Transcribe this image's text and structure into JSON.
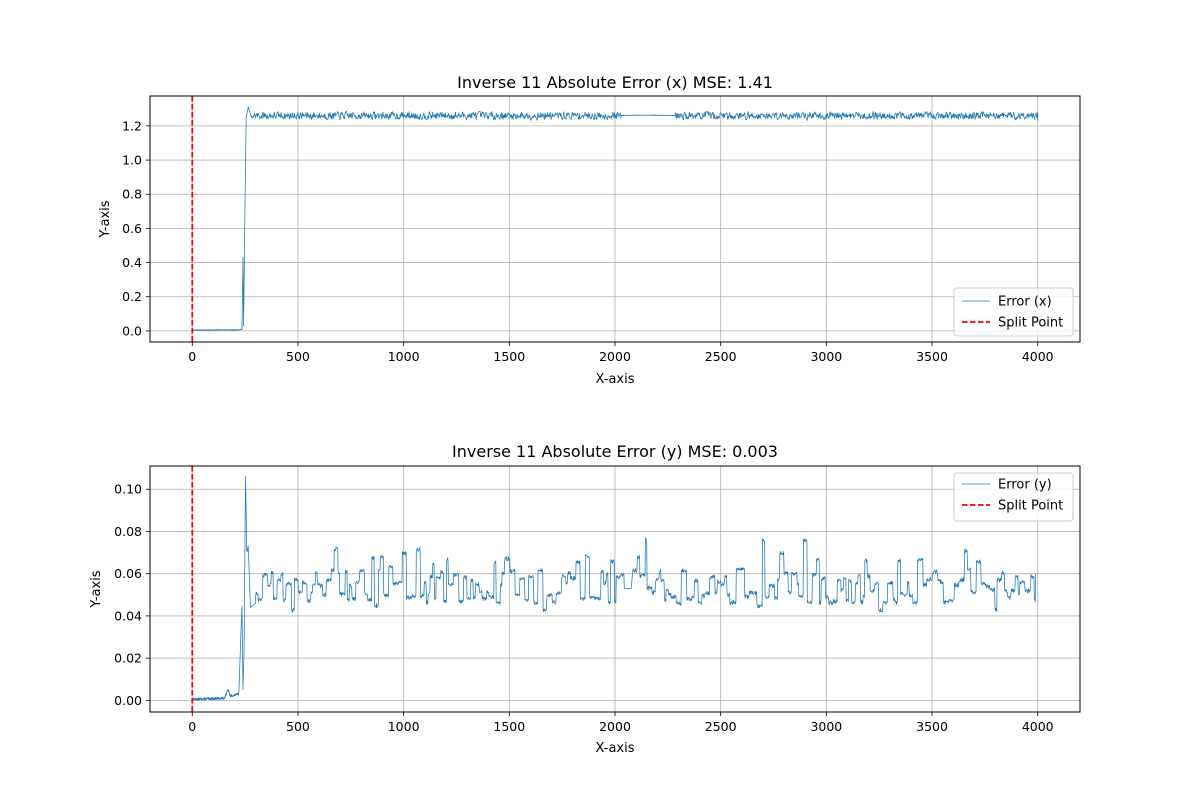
{
  "chart_data": [
    {
      "type": "line",
      "title": "Inverse 11 Absolute Error (x) MSE: 1.41",
      "xlabel": "X-axis",
      "ylabel": "Y-axis",
      "xlim": [
        -200,
        4200
      ],
      "ylim": [
        -0.065,
        1.375
      ],
      "xticks": [
        0,
        500,
        1000,
        1500,
        2000,
        2500,
        3000,
        3500,
        4000
      ],
      "yticks": [
        0.0,
        0.2,
        0.4,
        0.6,
        0.8,
        1.0,
        1.2
      ],
      "ytick_labels": [
        "0.0",
        "0.2",
        "0.4",
        "0.6",
        "0.8",
        "1.0",
        "1.2"
      ],
      "grid": true,
      "legend_position": "lower-right",
      "split_point_x": 0,
      "series": [
        {
          "name": "Error (x)",
          "color": "#1f77b4",
          "profile": [
            [
              0,
              0.005
            ],
            [
              220,
              0.006
            ],
            [
              235,
              0.01
            ],
            [
              240,
              0.43
            ],
            [
              243,
              0.03
            ],
            [
              248,
              0.6
            ],
            [
              255,
              1.25
            ],
            [
              265,
              1.31
            ],
            [
              280,
              1.25
            ],
            [
              4000,
              1.23
            ]
          ],
          "steady_mean": 1.26,
          "steady_amplitude": 0.03,
          "flat_spans": [
            [
              2030,
              2280
            ]
          ]
        },
        {
          "name": "Split Point",
          "color": "#ff0000",
          "style": "dashed"
        }
      ]
    },
    {
      "type": "line",
      "title": "Inverse 11 Absolute Error (y) MSE: 0.003",
      "xlabel": "X-axis",
      "ylabel": "Y-axis",
      "xlim": [
        -200,
        4200
      ],
      "ylim": [
        -0.0055,
        0.111
      ],
      "xticks": [
        0,
        500,
        1000,
        1500,
        2000,
        2500,
        3000,
        3500,
        4000
      ],
      "yticks": [
        0.0,
        0.02,
        0.04,
        0.06,
        0.08,
        0.1
      ],
      "ytick_labels": [
        "0.00",
        "0.02",
        "0.04",
        "0.06",
        "0.08",
        "0.10"
      ],
      "grid": true,
      "legend_position": "upper-right",
      "split_point_x": 0,
      "series": [
        {
          "name": "Error (y)",
          "color": "#1f77b4",
          "profile": [
            [
              0,
              0.0005
            ],
            [
              150,
              0.001
            ],
            [
              170,
              0.005
            ],
            [
              180,
              0.002
            ],
            [
              220,
              0.003
            ],
            [
              235,
              0.045
            ],
            [
              240,
              0.005
            ],
            [
              245,
              0.024
            ],
            [
              252,
              0.106
            ],
            [
              258,
              0.07
            ],
            [
              265,
              0.073
            ],
            [
              275,
              0.044
            ],
            [
              300,
              0.046
            ],
            [
              3990,
              0.06
            ]
          ],
          "steady_min": 0.042,
          "steady_max": 0.077,
          "flat_spans": [
            [
              2030,
              2080
            ]
          ]
        },
        {
          "name": "Split Point",
          "color": "#ff0000",
          "style": "dashed"
        }
      ]
    }
  ]
}
